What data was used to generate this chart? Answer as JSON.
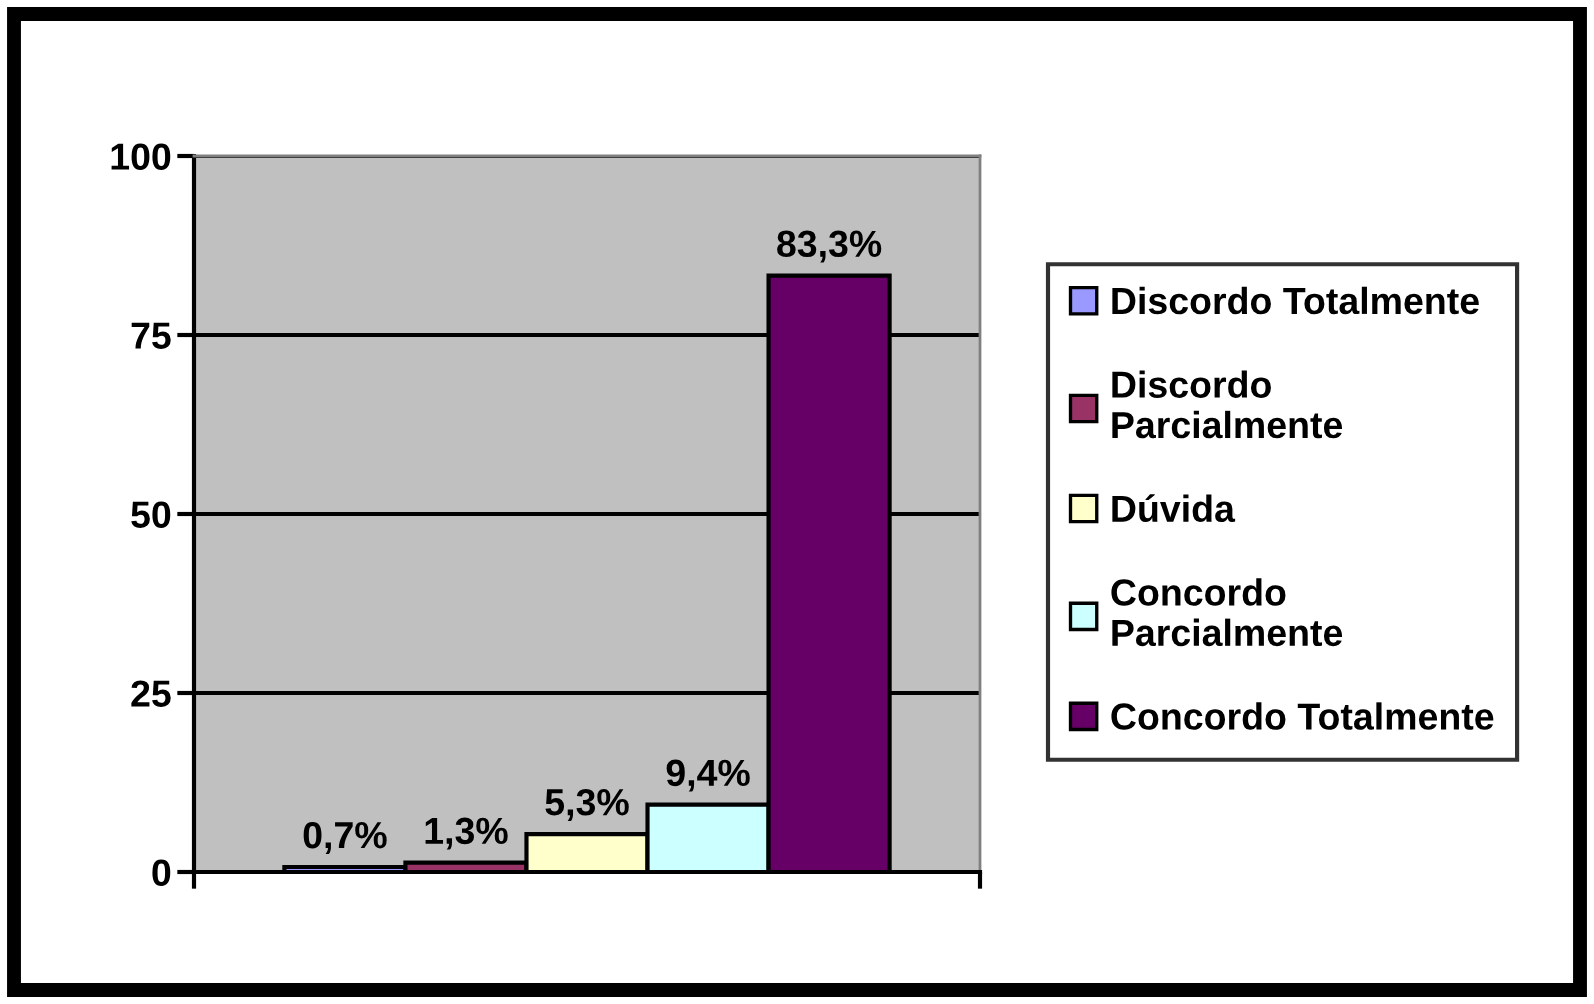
{
  "chart_data": {
    "type": "bar",
    "categories": [
      null
    ],
    "series": [
      {
        "name": "Discordo Totalmente",
        "color": "#9999ff",
        "values": [
          0.7
        ],
        "value_labels": [
          "0,7%"
        ]
      },
      {
        "name": "Discordo Parcialmente",
        "color": "#993366",
        "values": [
          1.3
        ],
        "value_labels": [
          "1,3%"
        ]
      },
      {
        "name": "Dúvida",
        "color": "#ffffcc",
        "values": [
          5.3
        ],
        "value_labels": [
          "5,3%"
        ]
      },
      {
        "name": "Concordo Parcialmente",
        "color": "#ccffff",
        "values": [
          9.4
        ],
        "value_labels": [
          "9,4%"
        ]
      },
      {
        "name": "Concordo Totalmente",
        "color": "#660066",
        "values": [
          83.3
        ],
        "value_labels": [
          "83,3%"
        ]
      }
    ],
    "ylim": [
      0,
      100
    ],
    "yticks": [
      0,
      25,
      50,
      75,
      100
    ],
    "grid": "y",
    "legend": "right"
  }
}
